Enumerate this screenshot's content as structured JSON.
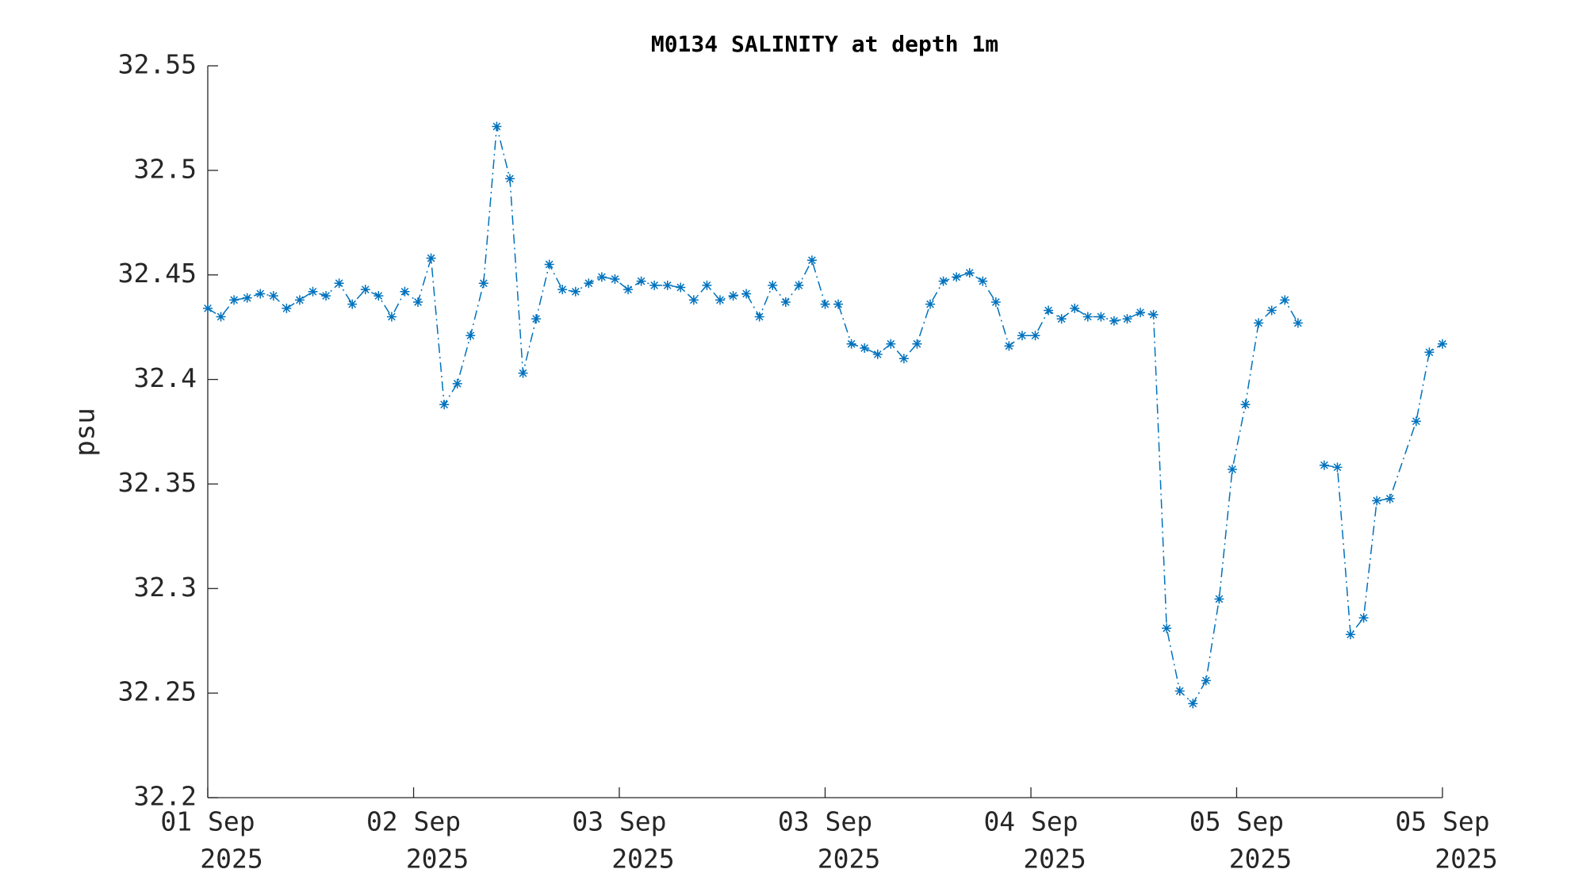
{
  "chart_data": {
    "type": "line",
    "title": "M0134 SALINITY at depth 1m",
    "ylabel": "psu",
    "color": "#0072bd",
    "line_style": "dash-dot",
    "marker": "asterisk",
    "x": [
      0,
      1,
      2,
      3,
      4,
      5,
      6,
      7,
      8,
      9,
      10,
      11,
      12,
      13,
      14,
      15,
      16,
      17,
      18,
      19,
      20,
      21,
      22,
      23,
      24,
      25,
      26,
      27,
      28,
      29,
      30,
      31,
      32,
      33,
      34,
      35,
      36,
      37,
      38,
      39,
      40,
      41,
      42,
      43,
      44,
      45,
      46,
      47,
      48,
      49,
      50,
      51,
      52,
      53,
      54,
      55,
      56,
      57,
      58,
      59,
      60,
      61,
      62,
      63,
      64,
      65,
      66,
      67,
      68,
      69,
      70,
      71,
      72,
      73,
      74,
      75,
      76,
      77,
      78,
      79,
      80,
      81,
      82,
      83,
      84,
      85,
      86,
      87,
      88,
      89,
      90,
      92,
      93,
      94
    ],
    "values": [
      32.434,
      32.43,
      32.438,
      32.439,
      32.441,
      32.44,
      32.434,
      32.438,
      32.442,
      32.44,
      32.446,
      32.436,
      32.443,
      32.44,
      32.43,
      32.442,
      32.437,
      32.458,
      32.388,
      32.398,
      32.421,
      32.446,
      32.521,
      32.496,
      32.403,
      32.429,
      32.455,
      32.443,
      32.442,
      32.446,
      32.449,
      32.448,
      32.443,
      32.447,
      32.445,
      32.445,
      32.444,
      32.438,
      32.445,
      32.438,
      32.44,
      32.441,
      32.43,
      32.445,
      32.437,
      32.445,
      32.457,
      32.436,
      32.436,
      32.417,
      32.415,
      32.412,
      32.417,
      32.41,
      32.417,
      32.436,
      32.447,
      32.449,
      32.451,
      32.447,
      32.437,
      32.416,
      32.421,
      32.421,
      32.433,
      32.429,
      32.434,
      32.43,
      32.43,
      32.428,
      32.429,
      32.432,
      32.431,
      32.281,
      32.251,
      32.245,
      32.256,
      32.295,
      32.357,
      32.388,
      32.427,
      32.433,
      32.438,
      32.427,
      null,
      32.359,
      32.358,
      32.278,
      32.286,
      32.342,
      32.343,
      32.38,
      32.413,
      32.417
    ],
    "xlim": [
      0,
      94
    ],
    "xticks": [
      {
        "value": 0,
        "label": [
          "01 Sep",
          "2025"
        ]
      },
      {
        "value": 15.67,
        "label": [
          "02 Sep",
          "2025"
        ]
      },
      {
        "value": 31.33,
        "label": [
          "03 Sep",
          "2025"
        ]
      },
      {
        "value": 47,
        "label": [
          "03 Sep",
          "2025"
        ]
      },
      {
        "value": 62.67,
        "label": [
          "04 Sep",
          "2025"
        ]
      },
      {
        "value": 78.33,
        "label": [
          "05 Sep",
          "2025"
        ]
      },
      {
        "value": 94,
        "label": [
          "05 Sep",
          "2025"
        ]
      }
    ],
    "ylim": [
      32.2,
      32.55
    ],
    "yticks": [
      32.2,
      32.25,
      32.3,
      32.35,
      32.4,
      32.45,
      32.5,
      32.55
    ],
    "grid": false
  }
}
